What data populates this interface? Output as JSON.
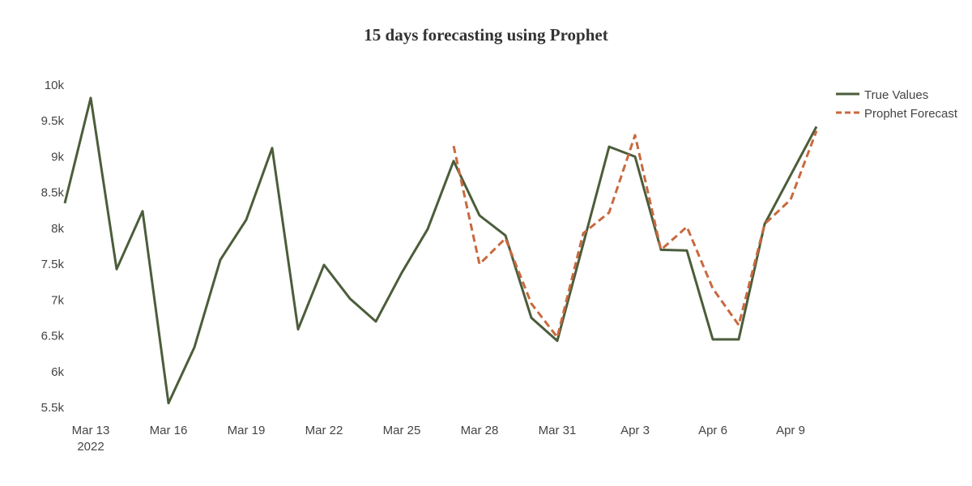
{
  "chart_data": {
    "type": "line",
    "title": "15 days forecasting using Prophet",
    "xlabel": "",
    "ylabel": "",
    "x_start": "2022-03-12",
    "x_end": "2022-04-10",
    "ylim": [
      5500,
      10000
    ],
    "y_ticks": [
      {
        "value": 5500,
        "label": "5.5k"
      },
      {
        "value": 6000,
        "label": "6k"
      },
      {
        "value": 6500,
        "label": "6.5k"
      },
      {
        "value": 7000,
        "label": "7k"
      },
      {
        "value": 7500,
        "label": "7.5k"
      },
      {
        "value": 8000,
        "label": "8k"
      },
      {
        "value": 8500,
        "label": "8.5k"
      },
      {
        "value": 9000,
        "label": "9k"
      },
      {
        "value": 9500,
        "label": "9.5k"
      },
      {
        "value": 10000,
        "label": "10k"
      }
    ],
    "x_ticks": [
      {
        "date": "2022-03-13",
        "label": "Mar 13",
        "sublabel": "2022"
      },
      {
        "date": "2022-03-16",
        "label": "Mar 16",
        "sublabel": ""
      },
      {
        "date": "2022-03-19",
        "label": "Mar 19",
        "sublabel": ""
      },
      {
        "date": "2022-03-22",
        "label": "Mar 22",
        "sublabel": ""
      },
      {
        "date": "2022-03-25",
        "label": "Mar 25",
        "sublabel": ""
      },
      {
        "date": "2022-03-28",
        "label": "Mar 28",
        "sublabel": ""
      },
      {
        "date": "2022-03-31",
        "label": "Mar 31",
        "sublabel": ""
      },
      {
        "date": "2022-04-03",
        "label": "Apr 3",
        "sublabel": ""
      },
      {
        "date": "2022-04-06",
        "label": "Apr 6",
        "sublabel": ""
      },
      {
        "date": "2022-04-09",
        "label": "Apr 9",
        "sublabel": ""
      }
    ],
    "grid": false,
    "legend": "top-right",
    "series": [
      {
        "name": "True Values",
        "color": "#4b5d3a",
        "dash": "solid",
        "points": [
          {
            "x": "2022-03-12",
            "y": 8350
          },
          {
            "x": "2022-03-13",
            "y": 9820
          },
          {
            "x": "2022-03-14",
            "y": 7430
          },
          {
            "x": "2022-03-15",
            "y": 8240
          },
          {
            "x": "2022-03-16",
            "y": 5560
          },
          {
            "x": "2022-03-17",
            "y": 6340
          },
          {
            "x": "2022-03-18",
            "y": 7560
          },
          {
            "x": "2022-03-19",
            "y": 8120
          },
          {
            "x": "2022-03-20",
            "y": 9120
          },
          {
            "x": "2022-03-21",
            "y": 6590
          },
          {
            "x": "2022-03-22",
            "y": 7490
          },
          {
            "x": "2022-03-23",
            "y": 7020
          },
          {
            "x": "2022-03-24",
            "y": 6700
          },
          {
            "x": "2022-03-25",
            "y": 7380
          },
          {
            "x": "2022-03-26",
            "y": 7990
          },
          {
            "x": "2022-03-27",
            "y": 8940
          },
          {
            "x": "2022-03-28",
            "y": 8180
          },
          {
            "x": "2022-03-29",
            "y": 7900
          },
          {
            "x": "2022-03-30",
            "y": 6750
          },
          {
            "x": "2022-03-31",
            "y": 6430
          },
          {
            "x": "2022-04-01",
            "y": 7780
          },
          {
            "x": "2022-04-02",
            "y": 9140
          },
          {
            "x": "2022-04-03",
            "y": 9000
          },
          {
            "x": "2022-04-04",
            "y": 7700
          },
          {
            "x": "2022-04-05",
            "y": 7690
          },
          {
            "x": "2022-04-06",
            "y": 6450
          },
          {
            "x": "2022-04-07",
            "y": 6450
          },
          {
            "x": "2022-04-08",
            "y": 8060
          },
          {
            "x": "2022-04-09",
            "y": 8740
          },
          {
            "x": "2022-04-10",
            "y": 9420
          }
        ]
      },
      {
        "name": "Prophet Forecast",
        "color": "#c8693f",
        "dash": "dashed",
        "points": [
          {
            "x": "2022-03-27",
            "y": 9150
          },
          {
            "x": "2022-03-28",
            "y": 7500
          },
          {
            "x": "2022-03-29",
            "y": 7860
          },
          {
            "x": "2022-03-30",
            "y": 6950
          },
          {
            "x": "2022-03-31",
            "y": 6480
          },
          {
            "x": "2022-04-01",
            "y": 7930
          },
          {
            "x": "2022-04-02",
            "y": 8220
          },
          {
            "x": "2022-04-03",
            "y": 9300
          },
          {
            "x": "2022-04-04",
            "y": 7700
          },
          {
            "x": "2022-04-05",
            "y": 8020
          },
          {
            "x": "2022-04-06",
            "y": 7160
          },
          {
            "x": "2022-04-07",
            "y": 6650
          },
          {
            "x": "2022-04-08",
            "y": 8060
          },
          {
            "x": "2022-04-09",
            "y": 8400
          },
          {
            "x": "2022-04-10",
            "y": 9360
          }
        ]
      }
    ]
  }
}
